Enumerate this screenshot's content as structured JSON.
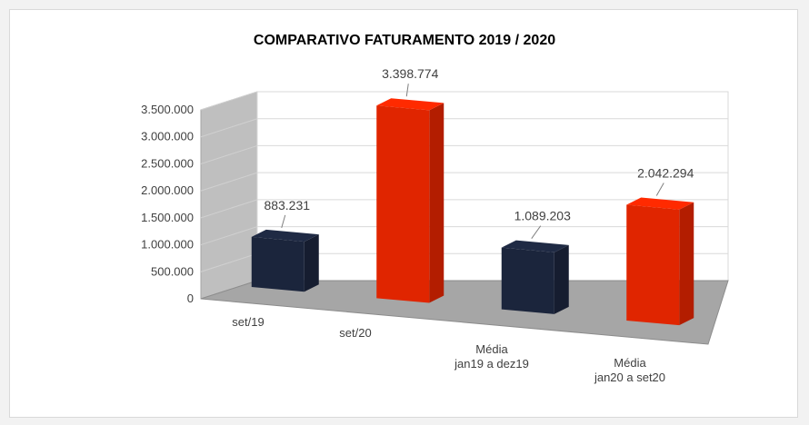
{
  "chart_data": {
    "type": "bar",
    "title": "COMPARATIVO FATURAMENTO 2019 / 2020",
    "xlabel": "",
    "ylabel": "",
    "ylim": [
      0,
      3500000
    ],
    "y_ticks": [
      "0",
      "500.000",
      "1.000.000",
      "1.500.000",
      "2.000.000",
      "2.500.000",
      "3.000.000",
      "3.500.000"
    ],
    "grid": true,
    "legend": "none",
    "three_d": true,
    "categories": [
      [
        "set/19"
      ],
      [
        "set/20"
      ],
      [
        "Média",
        "jan19 a dez19"
      ],
      [
        "Média",
        "jan20 a set20"
      ]
    ],
    "values": [
      883231,
      3398774,
      1089203,
      2042294
    ],
    "data_labels": [
      "883.231",
      "3.398.774",
      "1.089.203",
      "2.042.294"
    ],
    "colors": [
      "#1f2a44",
      "#ff2a00",
      "#1f2a44",
      "#ff2a00"
    ]
  }
}
